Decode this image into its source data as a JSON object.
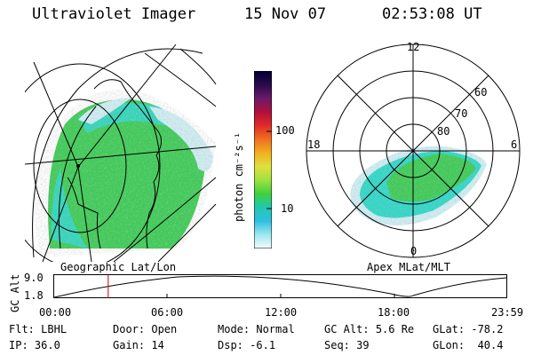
{
  "header": {
    "title": "Ultraviolet Imager",
    "date": "15 Nov 07",
    "time": "02:53:08 UT"
  },
  "colorbar": {
    "label": "photon cm⁻²s⁻¹",
    "ticks": [
      "100",
      "10"
    ],
    "stops": [
      "#000033",
      "#2a0a4a",
      "#6a1a6a",
      "#b0103a",
      "#e02a2a",
      "#f07020",
      "#f0b020",
      "#e0e040",
      "#a0e040",
      "#40d040",
      "#20c8b0",
      "#30c0e0",
      "#a0e8f0",
      "#f4fbfd"
    ]
  },
  "maps": {
    "left_label": "Geographic Lat/Lon",
    "right_label": "Apex MLat/MLT"
  },
  "polar": {
    "mlt_labels": [
      "12",
      "18",
      "6",
      "0"
    ],
    "lat_labels": [
      "60",
      "70",
      "80"
    ]
  },
  "alt_plot": {
    "ylabel": "GC Alt",
    "yticks": [
      "9.0",
      "1.8"
    ],
    "xticks": [
      "00:00",
      "06:00",
      "12:00",
      "18:00",
      "23:59"
    ],
    "current_time_hours": 2.885
  },
  "info": {
    "rows": [
      [
        {
          "k": "Flt:",
          "v": "LBHL"
        },
        {
          "k": "Door:",
          "v": "Open"
        },
        {
          "k": "Mode:",
          "v": "Normal"
        },
        {
          "k": "GC Alt:",
          "v": "5.6 Re"
        },
        {
          "k": "GLat:",
          "v": "-78.2"
        }
      ],
      [
        {
          "k": "IP:",
          "v": "36.0"
        },
        {
          "k": "Gain:",
          "v": "14"
        },
        {
          "k": "Dsp:",
          "v": "-6.1"
        },
        {
          "k": "Seq:",
          "v": "39"
        },
        {
          "k": "GLon:",
          "v": " 40.4"
        }
      ]
    ]
  },
  "colors": {
    "ring": "#000000",
    "aurora_green": "#3ccc55",
    "aurora_cyan": "#2fd8c8",
    "aurora_pale": "#cfeff4",
    "marker": "#cc0000"
  }
}
